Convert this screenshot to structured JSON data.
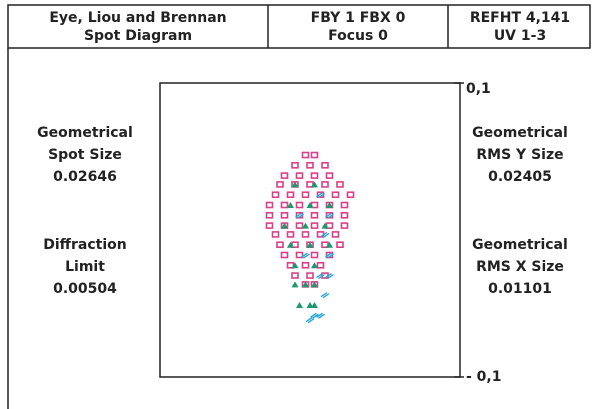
{
  "header": {
    "left": [
      "Eye, Liou and Brennan",
      "Spot Diagram"
    ],
    "middle": [
      "FBY 1 FBX 0",
      "Focus 0"
    ],
    "right": [
      "REFHT 4,141",
      "UV 1-3"
    ]
  },
  "left_panel": [
    [
      "Geometrical",
      "Spot Size",
      "0.02646"
    ],
    [
      "Diffraction",
      "Limit",
      "0.00504"
    ]
  ],
  "right_panel": [
    [
      "Geometrical",
      "RMS Y Size",
      "0.02405"
    ],
    [
      "Geometrical",
      "RMS X Size",
      "0.01101"
    ]
  ],
  "chart_data": {
    "type": "scatter",
    "xlim": [
      -0.1,
      0.1
    ],
    "ylim": [
      -0.1,
      0.1
    ],
    "yticks": [
      {
        "value": 0.1,
        "label": "0,1"
      },
      {
        "value": -0.1,
        "label": "- 0,1"
      }
    ],
    "series": [
      {
        "color": "#d9408a",
        "marker": "square",
        "x": [
          -0.003,
          0.003,
          -0.01,
          0,
          0.01,
          -0.017,
          -0.007,
          0.003,
          0.013,
          -0.02,
          -0.01,
          0,
          0.01,
          0.02,
          -0.023,
          -0.013,
          -0.003,
          0.007,
          0.017,
          0.027,
          -0.027,
          -0.017,
          -0.007,
          0.003,
          0.013,
          0.023,
          -0.027,
          -0.017,
          -0.007,
          0.003,
          0.013,
          0.023,
          -0.027,
          -0.017,
          -0.007,
          0.003,
          0.013,
          0.023,
          -0.023,
          -0.013,
          -0.003,
          0.007,
          0.017,
          -0.02,
          -0.01,
          0,
          0.01,
          0.02,
          -0.017,
          -0.007,
          0.003,
          0.013,
          -0.013,
          -0.003,
          0.007,
          -0.01,
          0,
          0.01,
          -0.003,
          0.003
        ],
        "y": [
          0.051,
          0.051,
          0.044,
          0.044,
          0.044,
          0.037,
          0.037,
          0.037,
          0.037,
          0.031,
          0.031,
          0.031,
          0.031,
          0.031,
          0.024,
          0.024,
          0.024,
          0.024,
          0.024,
          0.024,
          0.017,
          0.017,
          0.017,
          0.017,
          0.017,
          0.017,
          0.01,
          0.01,
          0.01,
          0.01,
          0.01,
          0.01,
          0.003,
          0.003,
          0.003,
          0.003,
          0.003,
          0.003,
          -0.003,
          -0.003,
          -0.003,
          -0.003,
          -0.003,
          -0.01,
          -0.01,
          -0.01,
          -0.01,
          -0.01,
          -0.017,
          -0.017,
          -0.017,
          -0.017,
          -0.024,
          -0.024,
          -0.024,
          -0.031,
          -0.031,
          -0.031,
          -0.037,
          -0.037
        ]
      },
      {
        "color": "#1a9a6c",
        "marker": "triangle",
        "x": [
          -0.01,
          0.003,
          -0.013,
          0,
          0.013,
          -0.017,
          -0.003,
          0.01,
          -0.013,
          0,
          0.013,
          -0.01,
          0.003,
          -0.01,
          -0.003,
          0.003,
          -0.007,
          0,
          0.003
        ],
        "y": [
          0.031,
          0.031,
          0.017,
          0.017,
          0.017,
          0.003,
          0.003,
          0.003,
          -0.01,
          -0.01,
          -0.01,
          -0.024,
          -0.024,
          -0.037,
          -0.037,
          -0.037,
          -0.051,
          -0.051,
          -0.051
        ]
      },
      {
        "color": "#29a8d8",
        "marker": "tick",
        "x": [
          0.007,
          -0.007,
          0.013,
          0.01,
          -0.003,
          0.013,
          0.007,
          0.013,
          0.01,
          0.003,
          0.007,
          0
        ],
        "y": [
          0.024,
          0.01,
          0.01,
          -0.003,
          -0.017,
          -0.017,
          -0.031,
          -0.031,
          -0.044,
          -0.058,
          -0.058,
          -0.061
        ]
      }
    ]
  }
}
